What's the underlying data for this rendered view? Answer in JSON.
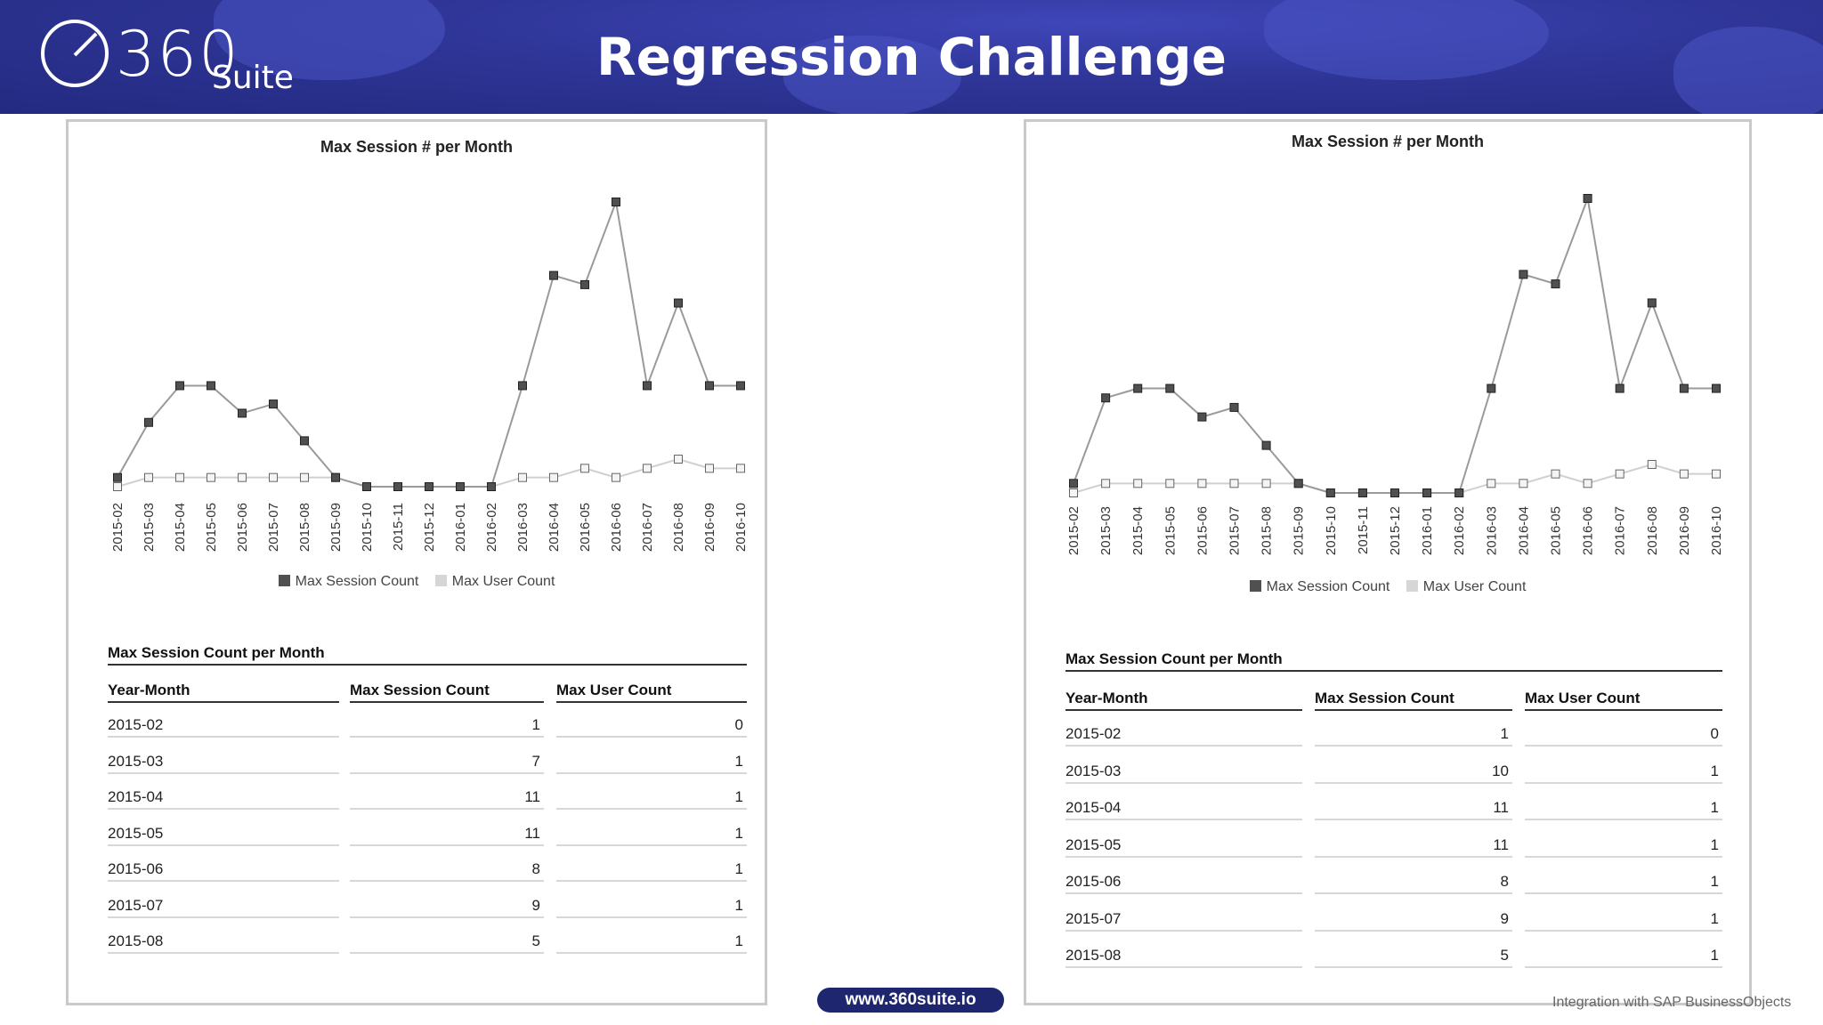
{
  "header": {
    "logo_number": "360",
    "logo_word": "Suite",
    "title": "Regression Challenge"
  },
  "panels": [
    {
      "chart_title": "Max Session # per Month",
      "table_title": "Max Session Count per Month",
      "columns": [
        "Year-Month",
        "Max Session Count",
        "Max User Count"
      ],
      "rows": [
        [
          "2015-02",
          "1",
          "0"
        ],
        [
          "2015-03",
          "7",
          "1"
        ],
        [
          "2015-04",
          "11",
          "1"
        ],
        [
          "2015-05",
          "11",
          "1"
        ],
        [
          "2015-06",
          "8",
          "1"
        ],
        [
          "2015-07",
          "9",
          "1"
        ],
        [
          "2015-08",
          "5",
          "1"
        ]
      ]
    },
    {
      "chart_title": "Max Session # per Month",
      "table_title": "Max Session Count per Month",
      "columns": [
        "Year-Month",
        "Max Session Count",
        "Max User Count"
      ],
      "rows": [
        [
          "2015-02",
          "1",
          "0"
        ],
        [
          "2015-03",
          "10",
          "1"
        ],
        [
          "2015-04",
          "11",
          "1"
        ],
        [
          "2015-05",
          "11",
          "1"
        ],
        [
          "2015-06",
          "8",
          "1"
        ],
        [
          "2015-07",
          "9",
          "1"
        ],
        [
          "2015-08",
          "5",
          "1"
        ]
      ]
    }
  ],
  "chart_data": [
    {
      "type": "line",
      "title": "Max Session # per Month",
      "xlabel": "",
      "ylabel": "",
      "ylim": [
        0,
        31
      ],
      "grid": false,
      "legend": "bottom",
      "categories": [
        "2015-02",
        "2015-03",
        "2015-04",
        "2015-05",
        "2015-06",
        "2015-07",
        "2015-08",
        "2015-09",
        "2015-10",
        "2015-11",
        "2015-12",
        "2016-01",
        "2016-02",
        "2016-03",
        "2016-04",
        "2016-05",
        "2016-06",
        "2016-07",
        "2016-08",
        "2016-09",
        "2016-10"
      ],
      "series": [
        {
          "name": "Max Session Count",
          "color": "#505050",
          "values": [
            1,
            7,
            11,
            11,
            8,
            9,
            5,
            1,
            0,
            0,
            0,
            0,
            0,
            11,
            23,
            22,
            31,
            11,
            20,
            11,
            11
          ]
        },
        {
          "name": "Max User Count",
          "color": "#cfcfcf",
          "values": [
            0,
            1,
            1,
            1,
            1,
            1,
            1,
            1,
            0,
            0,
            0,
            0,
            0,
            1,
            1,
            2,
            1,
            2,
            3,
            2,
            2
          ]
        }
      ]
    },
    {
      "type": "line",
      "title": "Max Session # per Month",
      "xlabel": "",
      "ylabel": "",
      "ylim": [
        0,
        31
      ],
      "grid": false,
      "legend": "bottom",
      "categories": [
        "2015-02",
        "2015-03",
        "2015-04",
        "2015-05",
        "2015-06",
        "2015-07",
        "2015-08",
        "2015-09",
        "2015-10",
        "2015-11",
        "2015-12",
        "2016-01",
        "2016-02",
        "2016-03",
        "2016-04",
        "2016-05",
        "2016-06",
        "2016-07",
        "2016-08",
        "2016-09",
        "2016-10"
      ],
      "series": [
        {
          "name": "Max Session Count",
          "color": "#505050",
          "values": [
            1,
            10,
            11,
            11,
            8,
            9,
            5,
            1,
            0,
            0,
            0,
            0,
            0,
            11,
            23,
            22,
            31,
            11,
            20,
            11,
            11
          ]
        },
        {
          "name": "Max User Count",
          "color": "#cfcfcf",
          "values": [
            0,
            1,
            1,
            1,
            1,
            1,
            1,
            1,
            0,
            0,
            0,
            0,
            0,
            1,
            1,
            2,
            1,
            2,
            3,
            2,
            2
          ]
        }
      ]
    }
  ],
  "footer": {
    "url": "www.360suite.io",
    "tagline": "Integration with SAP BusinessObjects"
  }
}
